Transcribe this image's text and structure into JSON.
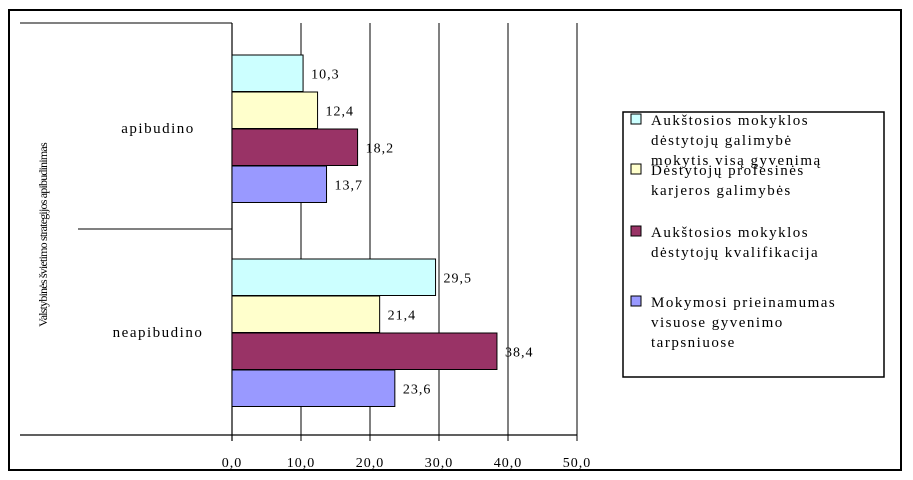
{
  "chart_data": {
    "type": "bar",
    "orientation": "horizontal",
    "ylabel": "Valstybinės švietimo strategijos apibudinimas",
    "categories": [
      "apibudino",
      "neapibudino"
    ],
    "series": [
      {
        "name": "Aukštosios mokyklos dėstytojų galimybė mokytis visą gyvenimą",
        "color": "#ccffff",
        "values": [
          10.3,
          29.5
        ],
        "labels": [
          "10,3",
          "29,5"
        ]
      },
      {
        "name": "Dėstytojų profesinės karjeros galimybės",
        "color": "#ffffcc",
        "values": [
          12.4,
          21.4
        ],
        "labels": [
          "12,4",
          "21,4"
        ]
      },
      {
        "name": "Aukštosios mokyklos dėstytojų kvalifikacija",
        "color": "#993366",
        "values": [
          18.2,
          38.4
        ],
        "labels": [
          "18,2",
          "38,4"
        ]
      },
      {
        "name": "Mokymosi prieinamumas visuose gyvenimo tarpsniuose",
        "color": "#9999ff",
        "values": [
          13.7,
          23.6
        ],
        "labels": [
          "13,7",
          "23,6"
        ]
      }
    ],
    "legend_lines": [
      [
        "Aukštosios mokyklos",
        "dėstytojų galimybė",
        "mokytis visą gyvenimą"
      ],
      [
        "Dėstytojų profesinės",
        "karjeros galimybės"
      ],
      [
        "Aukštosios mokyklos",
        "dėstytojų kvalifikacija"
      ],
      [
        "Mokymosi prieinamumas",
        "visuose gyvenimo",
        "tarpsniuose"
      ]
    ],
    "xlim": [
      0,
      50
    ],
    "xticks": [
      0,
      10,
      20,
      30,
      40,
      50
    ],
    "xtick_labels": [
      "0,0",
      "10,0",
      "20,0",
      "30,0",
      "40,0",
      "50,0"
    ],
    "grid": "vertical",
    "legend_position": "right"
  }
}
